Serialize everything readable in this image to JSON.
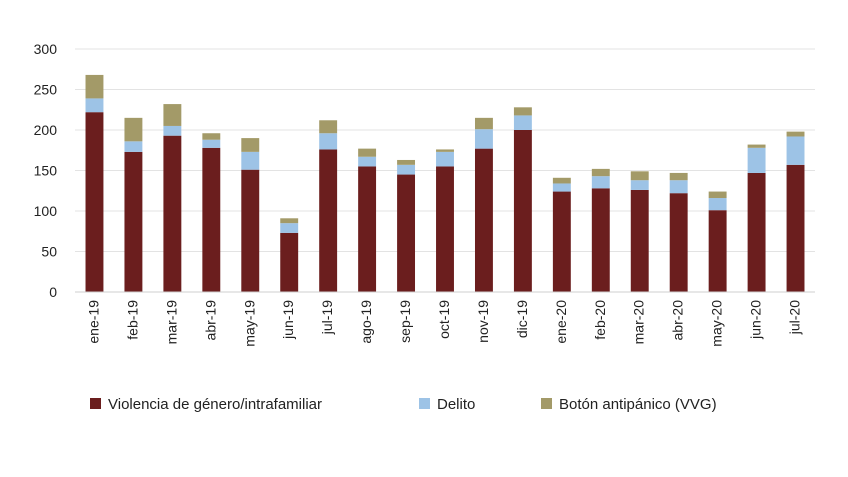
{
  "chart_data": {
    "type": "bar",
    "stacked": true,
    "title": "",
    "xlabel": "",
    "ylabel": "",
    "ylim": [
      0,
      300
    ],
    "yticks": [
      "0",
      "50",
      "100",
      "150",
      "200",
      "250",
      "300"
    ],
    "grid": true,
    "legend_position": "bottom",
    "categories": [
      "ene-19",
      "feb-19",
      "mar-19",
      "abr-19",
      "may-19",
      "jun-19",
      "jul-19",
      "ago-19",
      "sep-19",
      "oct-19",
      "nov-19",
      "dic-19",
      "ene-20",
      "feb-20",
      "mar-20",
      "abr-20",
      "may-20",
      "jun-20",
      "jul-20"
    ],
    "series": [
      {
        "name": "Violencia de género/intrafamiliar",
        "color": "#6b1e1e",
        "values": [
          222,
          173,
          193,
          178,
          151,
          73,
          176,
          155,
          145,
          155,
          177,
          200,
          124,
          128,
          126,
          122,
          101,
          147,
          157
        ]
      },
      {
        "name": "Delito",
        "color": "#9dc3e6",
        "values": [
          17,
          13,
          12,
          10,
          22,
          12,
          20,
          12,
          12,
          18,
          24,
          18,
          10,
          15,
          12,
          16,
          15,
          31,
          35
        ]
      },
      {
        "name": "Botón antipánico (VVG)",
        "color": "#a39a68",
        "values": [
          29,
          29,
          27,
          8,
          17,
          6,
          16,
          10,
          6,
          3,
          14,
          10,
          7,
          9,
          11,
          9,
          8,
          4,
          6
        ]
      }
    ]
  }
}
